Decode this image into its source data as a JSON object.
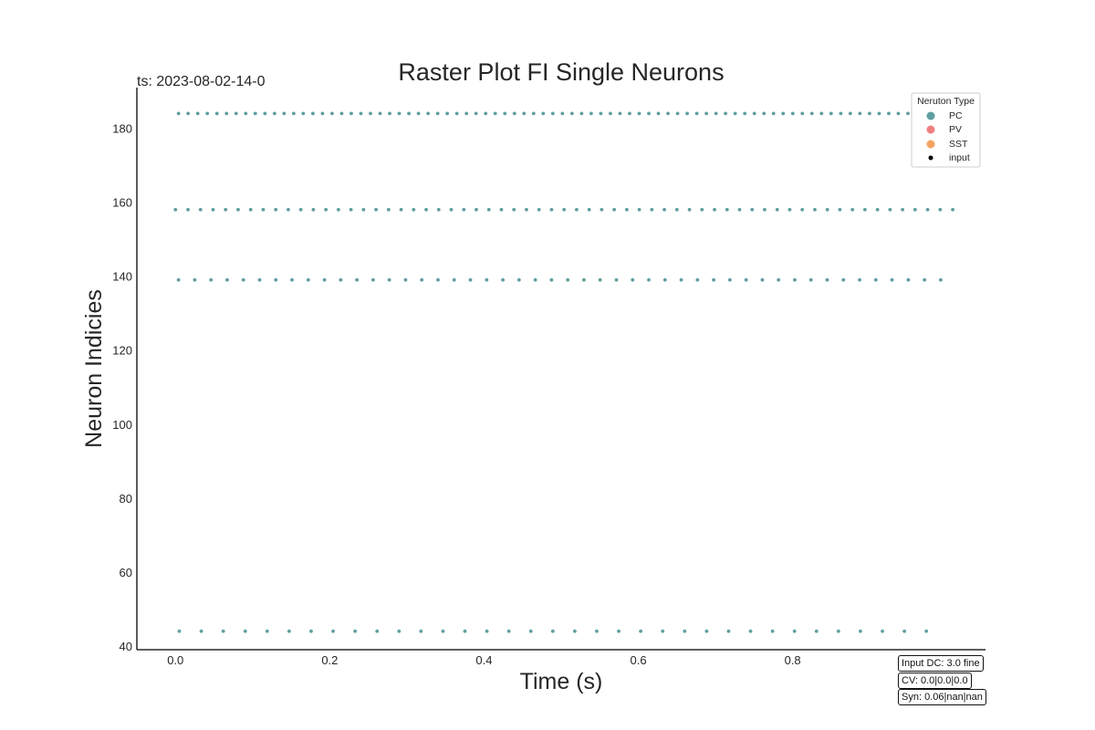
{
  "chart_data": {
    "type": "scatter",
    "title": "Raster Plot FI Single Neurons",
    "subtitle": "ts: 2023-08-02-14-0",
    "xlabel": "Time (s)",
    "ylabel": "Neuron Indicies",
    "xlim": [
      -0.05,
      1.05
    ],
    "ylim": [
      39,
      191
    ],
    "xticks": [
      "0.0",
      "0.2",
      "0.4",
      "0.6",
      "0.8"
    ],
    "yticks": [
      "40",
      "60",
      "80",
      "100",
      "120",
      "140",
      "160",
      "180"
    ],
    "grid": false,
    "legend": {
      "title": "Neruton Type",
      "placement": "top-right",
      "entries": [
        {
          "label": "PC",
          "color": "#5f9ea0"
        },
        {
          "label": "PV",
          "color": "#f08080"
        },
        {
          "label": "SST",
          "color": "#f4a460"
        },
        {
          "label": "input",
          "color": "#000000"
        }
      ]
    },
    "series": [
      {
        "name": "PC",
        "neuron": 184,
        "color": "#5f9ea0",
        "first_spike": 0.004,
        "isi": 0.01244,
        "n_spikes": 81
      },
      {
        "name": "PC",
        "neuron": 158,
        "color": "#5f9ea0",
        "first_spike": 0.0,
        "isi": 0.01625,
        "n_spikes": 63
      },
      {
        "name": "PC",
        "neuron": 139,
        "color": "#5f9ea0",
        "first_spike": 0.004,
        "isi": 0.02102,
        "n_spikes": 48
      },
      {
        "name": "PC",
        "neuron": 44,
        "color": "#5f9ea0",
        "first_spike": 0.005,
        "isi": 0.02848,
        "n_spikes": 35
      }
    ]
  },
  "info_boxes": [
    "Input DC: 3.0 fine",
    "CV: 0.0|0.0|0.0",
    "Syn: 0.06|nan|nan"
  ]
}
